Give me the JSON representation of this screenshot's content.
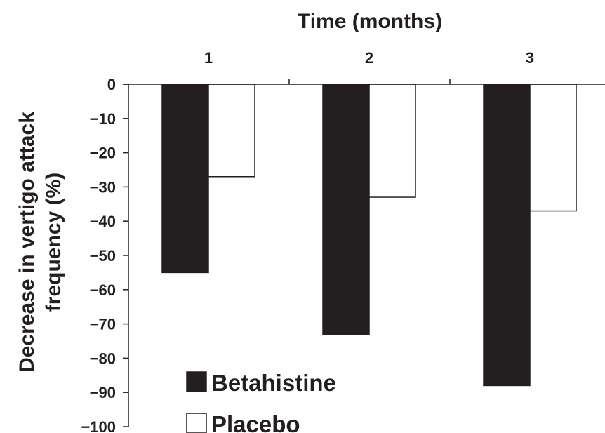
{
  "chart_data": {
    "type": "bar",
    "title": "",
    "xlabel": "Time (months)",
    "ylabel_line1": "Decrease in vertigo attack",
    "ylabel_line2": "frequency (%)",
    "categories": [
      "1",
      "2",
      "3"
    ],
    "series": [
      {
        "name": "Betahistine",
        "values": [
          -55,
          -73,
          -88
        ],
        "color": "#231f20"
      },
      {
        "name": "Placebo",
        "values": [
          -27,
          -33,
          -37
        ],
        "color": "#ffffff"
      }
    ],
    "ylim": [
      -100,
      0
    ],
    "yticks": [
      0,
      -10,
      -20,
      -30,
      -40,
      -50,
      -60,
      -70,
      -80,
      -90,
      -100
    ],
    "ytick_labels": [
      "0",
      "−10",
      "−20",
      "−30",
      "−40",
      "−50",
      "−60",
      "−70",
      "−80",
      "−90",
      "−100"
    ],
    "x_axis_position": "top",
    "legend_position": "bottom-left",
    "grid": false
  }
}
